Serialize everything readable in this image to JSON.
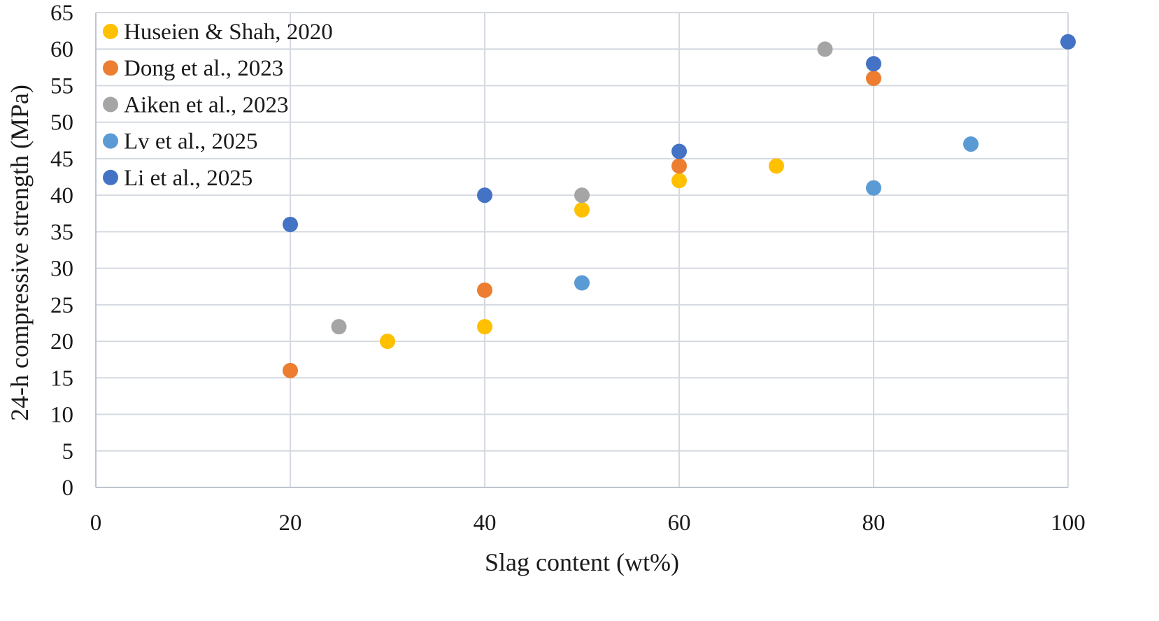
{
  "chart_data": {
    "type": "scatter",
    "title": "",
    "xlabel": "Slag content (wt%)",
    "ylabel": "24-h compressive strength (MPa)",
    "xlim": [
      0,
      100
    ],
    "ylim": [
      0,
      65
    ],
    "x_ticks": [
      0,
      20,
      40,
      60,
      80,
      100
    ],
    "y_ticks": [
      0,
      5,
      10,
      15,
      20,
      25,
      30,
      35,
      40,
      45,
      50,
      55,
      60,
      65
    ],
    "grid": true,
    "legend_position": "top-left",
    "series": [
      {
        "name": "Huseien & Shah, 2020",
        "color": "#FFC000",
        "points": [
          {
            "x": 30,
            "y": 20
          },
          {
            "x": 40,
            "y": 22
          },
          {
            "x": 50,
            "y": 38
          },
          {
            "x": 60,
            "y": 42
          },
          {
            "x": 70,
            "y": 44
          }
        ]
      },
      {
        "name": "Dong et al., 2023",
        "color": "#ED7D31",
        "points": [
          {
            "x": 20,
            "y": 16
          },
          {
            "x": 40,
            "y": 27
          },
          {
            "x": 60,
            "y": 44
          },
          {
            "x": 80,
            "y": 56
          }
        ]
      },
      {
        "name": "Aiken et al., 2023",
        "color": "#A5A5A5",
        "points": [
          {
            "x": 25,
            "y": 22
          },
          {
            "x": 50,
            "y": 40
          },
          {
            "x": 75,
            "y": 60
          }
        ]
      },
      {
        "name": "Lv et al., 2025",
        "color": "#5B9BD5",
        "points": [
          {
            "x": 50,
            "y": 28
          },
          {
            "x": 80,
            "y": 41
          },
          {
            "x": 90,
            "y": 47
          }
        ]
      },
      {
        "name": "Li et al., 2025",
        "color": "#4472C4",
        "points": [
          {
            "x": 20,
            "y": 36
          },
          {
            "x": 40,
            "y": 40
          },
          {
            "x": 60,
            "y": 46
          },
          {
            "x": 80,
            "y": 58
          },
          {
            "x": 100,
            "y": 61
          }
        ]
      }
    ]
  }
}
